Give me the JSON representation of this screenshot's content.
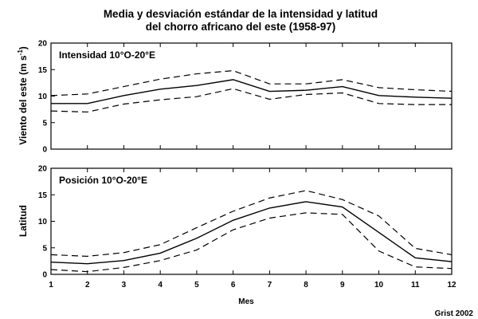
{
  "figure": {
    "title_line1": "Media y desviación estándar de la intensidad y latitud",
    "title_line2": "del chorro africano del este (1958-97)",
    "credit": "Grist 2002"
  },
  "chart_data": [
    {
      "type": "line",
      "title": "Intensidad 10°O-20°E",
      "xlabel": "",
      "ylabel": "Viento del este (m s",
      "ylabel_unit_superscript": "-1",
      "ylabel_close": ")",
      "x": [
        1,
        2,
        3,
        4,
        5,
        6,
        7,
        8,
        9,
        10,
        11,
        12
      ],
      "xlim": [
        1,
        12
      ],
      "ylim": [
        0,
        20
      ],
      "yticks": [
        0,
        5,
        10,
        15,
        20
      ],
      "grid": false,
      "series": [
        {
          "role": "upper",
          "style": "dashed",
          "values": [
            10.1,
            10.4,
            11.8,
            13.2,
            14.2,
            14.8,
            12.3,
            12.3,
            13.1,
            11.6,
            11.2,
            10.9
          ]
        },
        {
          "role": "mean",
          "style": "solid",
          "values": [
            8.6,
            8.6,
            10.1,
            11.3,
            12.0,
            13.1,
            10.9,
            11.1,
            11.8,
            10.1,
            9.8,
            9.6
          ]
        },
        {
          "role": "lower",
          "style": "dashed",
          "values": [
            7.2,
            7.0,
            8.5,
            9.3,
            9.9,
            11.4,
            9.4,
            10.3,
            10.6,
            8.6,
            8.4,
            8.4
          ]
        }
      ]
    },
    {
      "type": "line",
      "title": "Posición 10°O-20°E",
      "xlabel": "Mes",
      "ylabel": "Latitud",
      "x": [
        1,
        2,
        3,
        4,
        5,
        6,
        7,
        8,
        9,
        10,
        11,
        12
      ],
      "xlim": [
        1,
        12
      ],
      "ylim": [
        0,
        20
      ],
      "yticks": [
        0,
        5,
        10,
        15,
        20
      ],
      "xticks": [
        "1",
        "2",
        "3",
        "4",
        "5",
        "6",
        "7",
        "8",
        "9",
        "10",
        "11",
        "12"
      ],
      "grid": false,
      "series": [
        {
          "role": "upper",
          "style": "dashed",
          "values": [
            3.7,
            3.4,
            4.1,
            5.6,
            8.8,
            11.9,
            14.4,
            15.8,
            14.1,
            11.0,
            4.9,
            3.7
          ]
        },
        {
          "role": "mean",
          "style": "solid",
          "values": [
            2.3,
            2.0,
            2.6,
            4.0,
            6.8,
            10.2,
            12.5,
            13.7,
            12.7,
            7.9,
            3.1,
            2.4
          ]
        },
        {
          "role": "lower",
          "style": "dashed",
          "values": [
            0.9,
            0.5,
            1.3,
            2.6,
            4.6,
            8.4,
            10.6,
            11.6,
            11.3,
            4.4,
            1.4,
            1.1
          ]
        }
      ]
    }
  ]
}
